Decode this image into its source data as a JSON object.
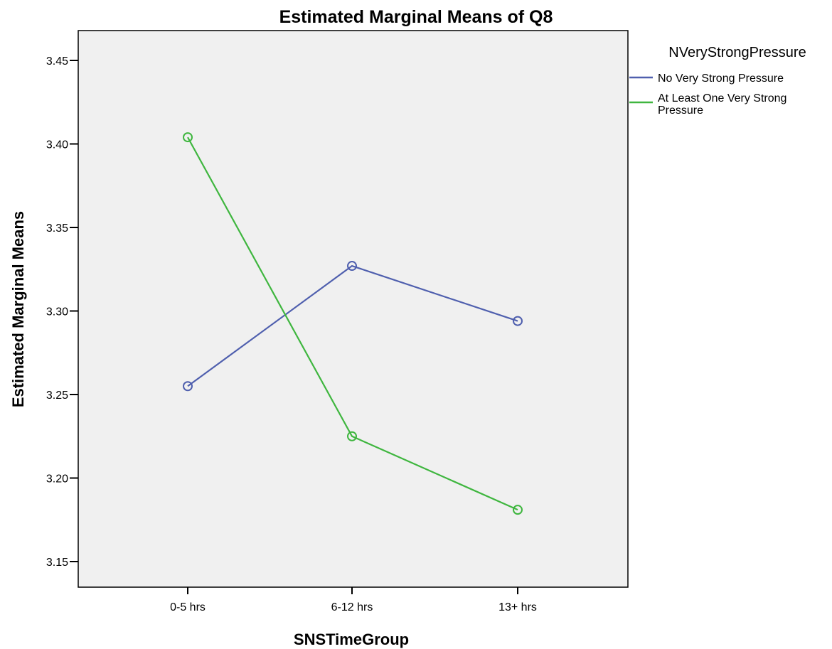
{
  "chart_data": {
    "type": "line",
    "title": "Estimated Marginal Means of Q8",
    "xlabel": "SNSTimeGroup",
    "ylabel": "Estimated Marginal Means",
    "categories": [
      "0-5 hrs",
      "6-12 hrs",
      "13+ hrs"
    ],
    "ylim": [
      3.135,
      3.475
    ],
    "yticks": [
      3.15,
      3.2,
      3.25,
      3.3,
      3.35,
      3.4,
      3.45
    ],
    "ytick_labels": [
      "3.15",
      "3.20",
      "3.25",
      "3.30",
      "3.35",
      "3.40",
      "3.45"
    ],
    "grid": false,
    "legend": {
      "title": "NVeryStrongPressure",
      "placement": "right"
    },
    "series": [
      {
        "name": "No Very Strong Pressure",
        "color": "#4f5fae",
        "values": [
          3.255,
          3.327,
          3.294
        ]
      },
      {
        "name": "At Least One Very Strong Pressure",
        "name_lines": [
          "At Least One Very Strong",
          "Pressure"
        ],
        "color": "#3fb63f",
        "values": [
          3.404,
          3.225,
          3.181
        ]
      }
    ]
  }
}
